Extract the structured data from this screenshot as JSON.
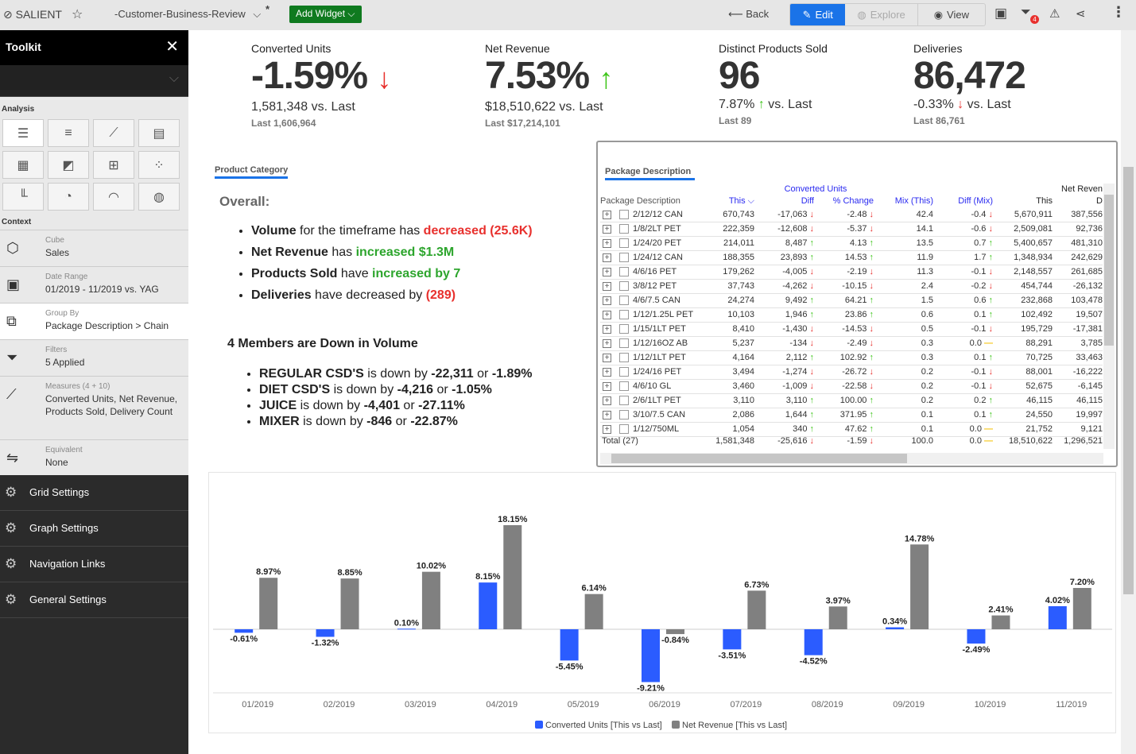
{
  "topbar": {
    "brand": "SALIENT",
    "dashboard": "-Customer-Business-Review",
    "modified": "*",
    "add_widget": "Add Widget",
    "back": "Back",
    "edit": "Edit",
    "explore": "Explore",
    "view": "View",
    "filter_badge": "4"
  },
  "toolkit": {
    "title": "Toolkit",
    "analysis_label": "Analysis",
    "context_label": "Context",
    "context": [
      {
        "label": "Cube",
        "value": "Sales",
        "icon": "cube-icon"
      },
      {
        "label": "Date Range",
        "value": "01/2019 - 11/2019 vs. YAG",
        "icon": "calendar-icon"
      },
      {
        "label": "Group By",
        "value": "Package Description > Chain",
        "icon": "group-icon"
      },
      {
        "label": "Filters",
        "value": "5 Applied",
        "icon": "filter-icon"
      },
      {
        "label": "Measures (4 + 10)",
        "value": "Converted Units, Net Revenue, Products Sold, Delivery Count",
        "icon": "ruler-icon"
      },
      {
        "label": "Equivalent",
        "value": "None",
        "icon": "equivalent-icon"
      }
    ],
    "menu": [
      "Grid Settings",
      "Graph Settings",
      "Navigation Links",
      "General Settings"
    ]
  },
  "kpis": [
    {
      "title": "Converted Units",
      "value": "-1.59%",
      "trend": "down",
      "sub": "1,581,348 vs. Last",
      "last": "Last 1,606,964"
    },
    {
      "title": "Net Revenue",
      "value": "7.53%",
      "trend": "up",
      "sub": "$18,510,622 vs. Last",
      "last": "Last $17,214,101"
    },
    {
      "title": "Distinct Products Sold",
      "value": "96",
      "sub_pct": "7.87%",
      "sub_trend": "up",
      "sub": "vs. Last",
      "last": "Last 89"
    },
    {
      "title": "Deliveries",
      "value": "86,472",
      "sub_pct": "-0.33%",
      "sub_trend": "down",
      "sub": "vs. Last",
      "last": "Last 86,761"
    }
  ],
  "summary": {
    "tab": "Product Category",
    "overall": "Overall:",
    "b1": [
      "Volume",
      " for the timeframe has ",
      "decreased (25.6K)"
    ],
    "b2": [
      "Net Revenue",
      " has ",
      "increased $1.3M"
    ],
    "b3": [
      "Products Sold",
      " have ",
      "increased by 7"
    ],
    "b4": [
      "Deliveries",
      " have decreased by ",
      "(289)"
    ],
    "members_title": "4 Members are Down in Volume",
    "members": [
      [
        "REGULAR CSD'S",
        " is down by ",
        "-22,311",
        " or ",
        "-1.89%"
      ],
      [
        "DIET CSD'S",
        " is down by ",
        "-4,216",
        " or ",
        "-1.05%"
      ],
      [
        "JUICE",
        " is down by ",
        "-4,401",
        " or ",
        "-27.11%"
      ],
      [
        "MIXER",
        " is down by ",
        "-846",
        " or ",
        "-22.87%"
      ]
    ]
  },
  "table": {
    "tab": "Package Description",
    "group_cu": "Converted Units",
    "group_nr": "Net Reven",
    "headers": [
      "Package Description",
      "This",
      "Diff",
      "% Change",
      "Mix (This)",
      "Diff (Mix)",
      "This",
      "D"
    ],
    "rows": [
      [
        "2/12/12 CAN",
        "670,743",
        "-17,063",
        "d",
        "-2.48",
        "d",
        "42.4",
        "-0.4",
        "d",
        "5,670,911",
        "387,556"
      ],
      [
        "1/8/2LT PET",
        "222,359",
        "-12,608",
        "d",
        "-5.37",
        "d",
        "14.1",
        "-0.6",
        "d",
        "2,509,081",
        "92,736"
      ],
      [
        "1/24/20 PET",
        "214,011",
        "8,487",
        "u",
        "4.13",
        "u",
        "13.5",
        "0.7",
        "u",
        "5,400,657",
        "481,310"
      ],
      [
        "1/24/12 CAN",
        "188,355",
        "23,893",
        "u",
        "14.53",
        "u",
        "11.9",
        "1.7",
        "u",
        "1,348,934",
        "242,629"
      ],
      [
        "4/6/16 PET",
        "179,262",
        "-4,005",
        "d",
        "-2.19",
        "d",
        "11.3",
        "-0.1",
        "d",
        "2,148,557",
        "261,685"
      ],
      [
        "3/8/12 PET",
        "37,743",
        "-4,262",
        "d",
        "-10.15",
        "d",
        "2.4",
        "-0.2",
        "d",
        "454,744",
        "-26,132"
      ],
      [
        "4/6/7.5 CAN",
        "24,274",
        "9,492",
        "u",
        "64.21",
        "u",
        "1.5",
        "0.6",
        "u",
        "232,868",
        "103,478"
      ],
      [
        "1/12/1.25L PET",
        "10,103",
        "1,946",
        "u",
        "23.86",
        "u",
        "0.6",
        "0.1",
        "u",
        "102,492",
        "19,507"
      ],
      [
        "1/15/1LT PET",
        "8,410",
        "-1,430",
        "d",
        "-14.53",
        "d",
        "0.5",
        "-0.1",
        "d",
        "195,729",
        "-17,381"
      ],
      [
        "1/12/16OZ AB",
        "5,237",
        "-134",
        "d",
        "-2.49",
        "d",
        "0.3",
        "0.0",
        "f",
        "88,291",
        "3,785"
      ],
      [
        "1/12/1LT PET",
        "4,164",
        "2,112",
        "u",
        "102.92",
        "u",
        "0.3",
        "0.1",
        "u",
        "70,725",
        "33,463"
      ],
      [
        "1/24/16 PET",
        "3,494",
        "-1,274",
        "d",
        "-26.72",
        "d",
        "0.2",
        "-0.1",
        "d",
        "88,001",
        "-16,222"
      ],
      [
        "4/6/10 GL",
        "3,460",
        "-1,009",
        "d",
        "-22.58",
        "d",
        "0.2",
        "-0.1",
        "d",
        "52,675",
        "-6,145"
      ],
      [
        "2/6/1LT PET",
        "3,110",
        "3,110",
        "u",
        "100.00",
        "u",
        "0.2",
        "0.2",
        "u",
        "46,115",
        "46,115"
      ],
      [
        "3/10/7.5 CAN",
        "2,086",
        "1,644",
        "u",
        "371.95",
        "u",
        "0.1",
        "0.1",
        "u",
        "24,550",
        "19,997"
      ],
      [
        "1/12/750ML",
        "1,054",
        "340",
        "u",
        "47.62",
        "u",
        "0.1",
        "0.0",
        "f",
        "21,752",
        "9,121"
      ]
    ],
    "total": [
      "Total (27)",
      "1,581,348",
      "-25,616",
      "d",
      "-1.59",
      "d",
      "100.0",
      "0.0",
      "f",
      "18,510,622",
      "1,296,521"
    ]
  },
  "chart_data": {
    "type": "bar",
    "categories": [
      "01/2019",
      "02/2019",
      "03/2019",
      "04/2019",
      "05/2019",
      "06/2019",
      "07/2019",
      "08/2019",
      "09/2019",
      "10/2019",
      "11/2019"
    ],
    "series": [
      {
        "name": "Converted Units [This vs Last]",
        "color": "#2b5cff",
        "values": [
          -0.61,
          -1.32,
          0.1,
          8.15,
          -5.45,
          -9.21,
          -3.51,
          -4.52,
          0.34,
          -2.49,
          4.02
        ]
      },
      {
        "name": "Net Revenue [This vs Last]",
        "color": "#808080",
        "values": [
          8.97,
          8.85,
          10.02,
          18.15,
          6.14,
          -0.84,
          6.73,
          3.97,
          14.78,
          2.41,
          7.2
        ]
      }
    ],
    "value_suffix": "%",
    "legend": "bottom"
  }
}
